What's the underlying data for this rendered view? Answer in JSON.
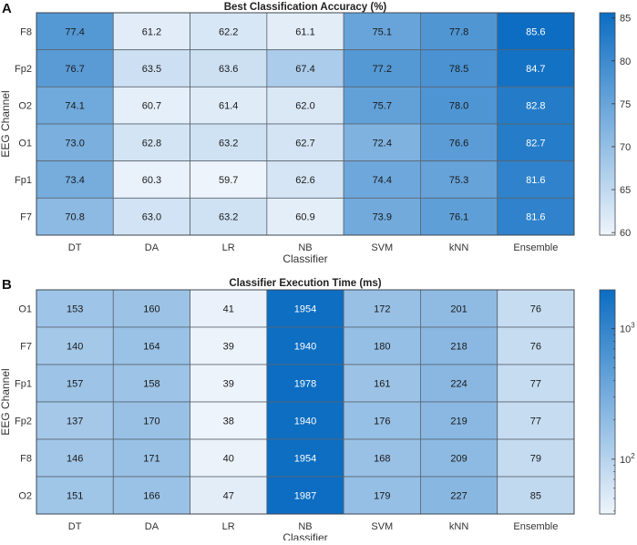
{
  "chart_data": [
    {
      "type": "heatmap",
      "panel_label": "A",
      "title": "Best Classification Accuracy (%)",
      "xlabel": "Classifier",
      "ylabel": "EEG Channel",
      "x": [
        "DT",
        "DA",
        "LR",
        "NB",
        "SVM",
        "kNN",
        "Ensemble"
      ],
      "y": [
        "F8",
        "Fp2",
        "O2",
        "O1",
        "Fp1",
        "F7"
      ],
      "values": [
        [
          77.4,
          61.2,
          62.2,
          61.1,
          75.1,
          77.8,
          85.6
        ],
        [
          76.7,
          63.5,
          63.6,
          67.4,
          77.2,
          78.5,
          84.7
        ],
        [
          74.1,
          60.7,
          61.4,
          62.0,
          75.7,
          78.0,
          82.8
        ],
        [
          73.0,
          62.8,
          63.2,
          62.7,
          72.4,
          76.6,
          82.7
        ],
        [
          73.4,
          60.3,
          59.7,
          62.6,
          74.4,
          75.3,
          81.6
        ],
        [
          70.8,
          63.0,
          63.2,
          60.9,
          73.9,
          76.1,
          81.6
        ]
      ],
      "value_format": "fixed1",
      "color_scale": "linear",
      "clim": [
        59.7,
        85.6
      ],
      "colorbar_ticks": [
        {
          "v": 60,
          "label": "60"
        },
        {
          "v": 65,
          "label": "65"
        },
        {
          "v": 70,
          "label": "70"
        },
        {
          "v": 75,
          "label": "75"
        },
        {
          "v": 80,
          "label": "80"
        },
        {
          "v": 85,
          "label": "85"
        }
      ],
      "colormap": [
        "#eef4fb",
        "#0c6dc2"
      ]
    },
    {
      "type": "heatmap",
      "panel_label": "B",
      "title": "Classifier Execution Time (ms)",
      "xlabel": "Classifier",
      "ylabel": "EEG Channel",
      "x": [
        "DT",
        "DA",
        "LR",
        "NB",
        "SVM",
        "kNN",
        "Ensemble"
      ],
      "y": [
        "O1",
        "F7",
        "Fp1",
        "Fp2",
        "F8",
        "O2"
      ],
      "values": [
        [
          153,
          160,
          41,
          1954,
          172,
          201,
          76
        ],
        [
          140,
          164,
          39,
          1940,
          180,
          218,
          76
        ],
        [
          157,
          158,
          39,
          1978,
          161,
          224,
          77
        ],
        [
          137,
          170,
          38,
          1940,
          176,
          219,
          77
        ],
        [
          146,
          171,
          40,
          1954,
          168,
          209,
          79
        ],
        [
          151,
          166,
          47,
          1987,
          179,
          227,
          85
        ]
      ],
      "value_format": "int",
      "color_scale": "log",
      "clim": [
        38,
        1987
      ],
      "colorbar_ticks": [
        {
          "v": 100,
          "base": "10",
          "exp": "2"
        },
        {
          "v": 1000,
          "base": "10",
          "exp": "3"
        }
      ],
      "colormap": [
        "#eef4fb",
        "#0c6dc2"
      ]
    }
  ]
}
